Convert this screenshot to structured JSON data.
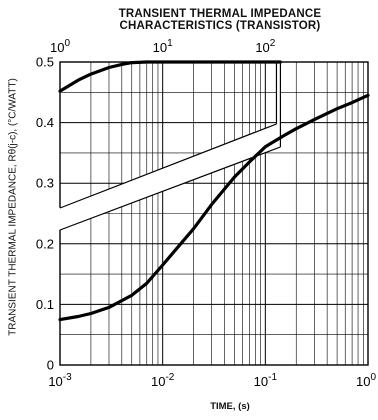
{
  "chart_data": {
    "type": "line",
    "title": "TRANSIENT THERMAL IMPEDANCE",
    "subtitle": "CHARACTERISTICS (TRANSISTOR)",
    "xlabel": "TIME, (s)",
    "ylabel": "TRANSIENT THERMAL IMPEDANCE, Rθ(j-c), (°C/WATT)",
    "x_scale": "log",
    "xlim": [
      0.001,
      1
    ],
    "ylim": [
      0,
      0.5
    ],
    "grid": true,
    "bottom_axis": {
      "ticks": [
        {
          "base": "10",
          "exp": "-3"
        },
        {
          "base": "10",
          "exp": "-2"
        },
        {
          "base": "10",
          "exp": "-1"
        },
        {
          "base": "10",
          "exp": "0"
        }
      ]
    },
    "top_axis": {
      "xlim": [
        1,
        1000
      ],
      "ticks": [
        {
          "base": "10",
          "exp": "0"
        },
        {
          "base": "10",
          "exp": "1"
        },
        {
          "base": "10",
          "exp": "2"
        }
      ]
    },
    "y_ticks": [
      "0",
      "0.1",
      "0.2",
      "0.3",
      "0.4",
      "0.5"
    ],
    "series": [
      {
        "axis": "bottom",
        "x": [
          0.001,
          0.0015,
          0.002,
          0.003,
          0.005,
          0.007,
          0.01,
          0.015,
          0.02,
          0.03,
          0.05,
          0.07,
          0.1,
          0.15,
          0.2,
          0.3,
          0.5,
          0.7,
          1.0
        ],
        "y": [
          0.075,
          0.08,
          0.085,
          0.095,
          0.115,
          0.135,
          0.165,
          0.2,
          0.225,
          0.265,
          0.31,
          0.335,
          0.36,
          0.378,
          0.39,
          0.405,
          0.423,
          0.433,
          0.445
        ]
      },
      {
        "axis": "top",
        "x": [
          1,
          1.5,
          2,
          3,
          4,
          5,
          7,
          10,
          20,
          50,
          100,
          140
        ],
        "y": [
          0.452,
          0.47,
          0.48,
          0.491,
          0.496,
          0.499,
          0.5,
          0.5,
          0.5,
          0.5,
          0.5,
          0.5
        ]
      }
    ]
  }
}
